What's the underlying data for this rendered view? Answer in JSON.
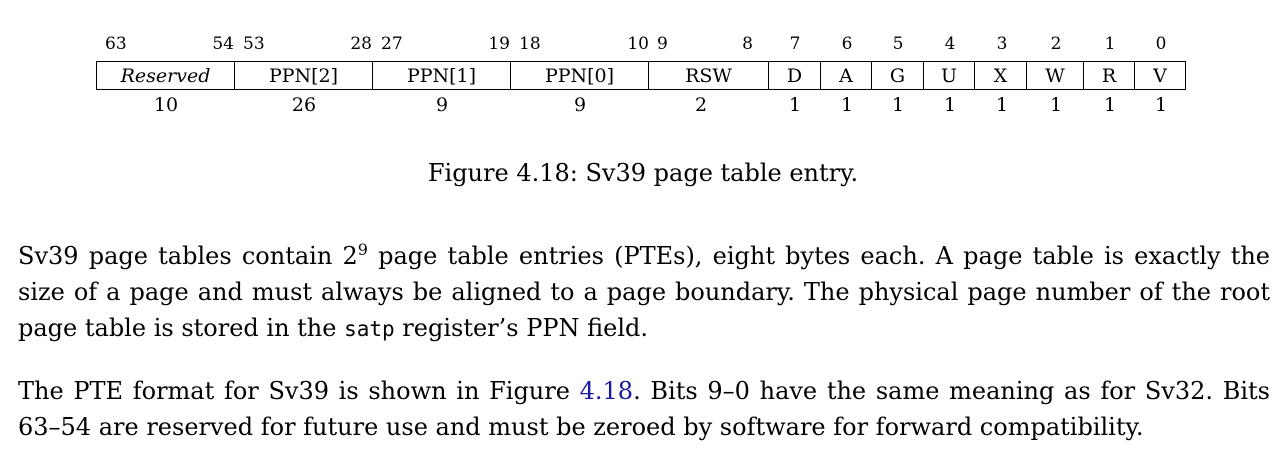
{
  "figure": {
    "fields": [
      {
        "label": "Reserved",
        "hi": "63",
        "lo": "54",
        "width": "10",
        "italic": true
      },
      {
        "label": "PPN[2]",
        "hi": "53",
        "lo": "28",
        "width": "26"
      },
      {
        "label": "PPN[1]",
        "hi": "27",
        "lo": "19",
        "width": "9"
      },
      {
        "label": "PPN[0]",
        "hi": "18",
        "lo": "10",
        "width": "9"
      },
      {
        "label": "RSW",
        "hi": "9",
        "lo": "8",
        "width": "2"
      },
      {
        "label": "D",
        "bit": "7",
        "width": "1"
      },
      {
        "label": "A",
        "bit": "6",
        "width": "1"
      },
      {
        "label": "G",
        "bit": "5",
        "width": "1"
      },
      {
        "label": "U",
        "bit": "4",
        "width": "1"
      },
      {
        "label": "X",
        "bit": "3",
        "width": "1"
      },
      {
        "label": "W",
        "bit": "2",
        "width": "1"
      },
      {
        "label": "R",
        "bit": "1",
        "width": "1"
      },
      {
        "label": "V",
        "bit": "0",
        "width": "1"
      }
    ],
    "caption": {
      "label": "Figure 4.18:",
      "text": "Sv39 page table entry."
    }
  },
  "paragraph1": {
    "part1": "Sv39 page tables contain 2",
    "sup": "9",
    "part2": " page table entries (PTEs), eight bytes each. A page table is exactly the size of a page and must always be aligned to a page boundary. The physical page number of the root page table is stored in the ",
    "code": "satp",
    "part3": " register’s PPN field."
  },
  "paragraph2": {
    "part1": "The PTE format for Sv39 is shown in Figure ",
    "ref": "4.18",
    "part2": ". Bits 9–0 have the same meaning as for Sv32. Bits 63–54 are reserved for future use and must be zeroed by software for forward compatibility."
  }
}
